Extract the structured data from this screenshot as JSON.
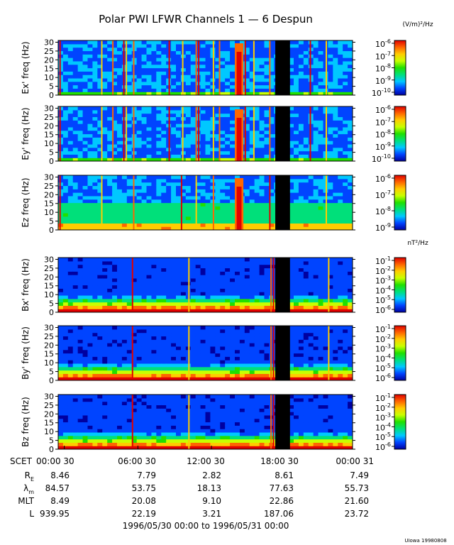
{
  "chart_data": {
    "type": "heatmap",
    "title": "Polar PWI LFWR Channels 1 — 6 Despun",
    "electric_unit": "(V/m)²/Hz",
    "magnetic_unit": "nT²/Hz",
    "date_range": "1996/05/30 00:00 to 1996/05/31 00:00",
    "credit": "UIowa 19980808",
    "xlim_hours": [
      0,
      24
    ],
    "gap_hours": [
      17.7,
      18.9
    ],
    "x_tick_hours": [
      0.5,
      6.5,
      12.5,
      18.5,
      24.5
    ],
    "y_ticks": [
      "0",
      "5",
      "10",
      "15",
      "20",
      "25",
      "30"
    ],
    "ylim": [
      0,
      31
    ],
    "colormap": [
      "#0000a0",
      "#0044ff",
      "#00c8ff",
      "#00e07a",
      "#20e000",
      "#c8ff00",
      "#ffcc00",
      "#ff6600",
      "#e00000"
    ],
    "panels": [
      {
        "ylabel": "Ex' freq (Hz)",
        "kind": "E",
        "cb_labels": [
          {
            "exp": "-6"
          },
          {
            "exp": "-7"
          },
          {
            "exp": "-8"
          },
          {
            "exp": "-9"
          },
          {
            "exp": "-10"
          }
        ],
        "spikes": [
          0.1,
          3.5,
          4.4,
          5.3,
          5.5,
          6.1,
          9.0,
          10.1,
          11.2,
          11.4,
          12.6,
          13.1,
          15.2,
          15.9,
          17.2,
          20.5,
          21.8
        ]
      },
      {
        "ylabel": "Ey' freq (Hz)",
        "kind": "E",
        "cb_labels": [
          {
            "exp": "-6"
          },
          {
            "exp": "-7"
          },
          {
            "exp": "-8"
          },
          {
            "exp": "-9"
          },
          {
            "exp": "-10"
          }
        ],
        "spikes": [
          0.1,
          3.5,
          4.4,
          5.3,
          5.5,
          6.1,
          9.0,
          10.1,
          11.2,
          11.4,
          12.6,
          13.1,
          15.2,
          15.9,
          17.2,
          20.5,
          21.8
        ]
      },
      {
        "ylabel": "Ez freq (Hz)",
        "kind": "Ez",
        "cb_labels": [
          {
            "exp": "-6"
          },
          {
            "exp": "-7"
          },
          {
            "exp": "-8"
          },
          {
            "exp": "-9"
          }
        ],
        "spikes": [
          0.1,
          3.5,
          6.1,
          10.0,
          11.2,
          12.6,
          17.2,
          21.8
        ]
      },
      {
        "ylabel": "Bx' freq (Hz)",
        "kind": "B",
        "cb_labels": [
          {
            "exp": "-1"
          },
          {
            "exp": "-2"
          },
          {
            "exp": "-3"
          },
          {
            "exp": "-4"
          },
          {
            "exp": "-5"
          },
          {
            "exp": "-6"
          }
        ],
        "spikes": [
          6.0,
          10.6,
          17.3,
          17.5,
          22.0
        ]
      },
      {
        "ylabel": "By' freq (Hz)",
        "kind": "B",
        "cb_labels": [
          {
            "exp": "-1"
          },
          {
            "exp": "-2"
          },
          {
            "exp": "-3"
          },
          {
            "exp": "-4"
          },
          {
            "exp": "-5"
          },
          {
            "exp": "-6"
          }
        ],
        "spikes": [
          6.0,
          10.6,
          17.3,
          17.5,
          22.0
        ]
      },
      {
        "ylabel": "Bz freq (Hz)",
        "kind": "B",
        "cb_labels": [
          {
            "exp": "-1"
          },
          {
            "exp": "-2"
          },
          {
            "exp": "-3"
          },
          {
            "exp": "-4"
          },
          {
            "exp": "-5"
          },
          {
            "exp": "-6"
          }
        ],
        "spikes": [
          6.0,
          10.6,
          17.3,
          17.5
        ]
      }
    ],
    "ephemeris": {
      "scet_label": "SCET",
      "scet": [
        "00:00 30",
        "06:00 30",
        "12:00 30",
        "18:00 30",
        "00:00 31"
      ],
      "rows": [
        {
          "label": "R",
          "sub": "E",
          "values": [
            "8.46",
            "7.79",
            "2.82",
            "8.61",
            "7.49"
          ]
        },
        {
          "label": "λ",
          "sub": "m",
          "values": [
            "84.57",
            "53.75",
            "18.13",
            "77.63",
            "55.73"
          ]
        },
        {
          "label": "MLT",
          "sub": "",
          "values": [
            "8.49",
            "20.08",
            "9.10",
            "22.86",
            "21.60"
          ]
        },
        {
          "label": "L",
          "sub": "",
          "values": [
            "939.95",
            "22.19",
            "3.21",
            "187.06",
            "23.72"
          ]
        }
      ]
    }
  }
}
